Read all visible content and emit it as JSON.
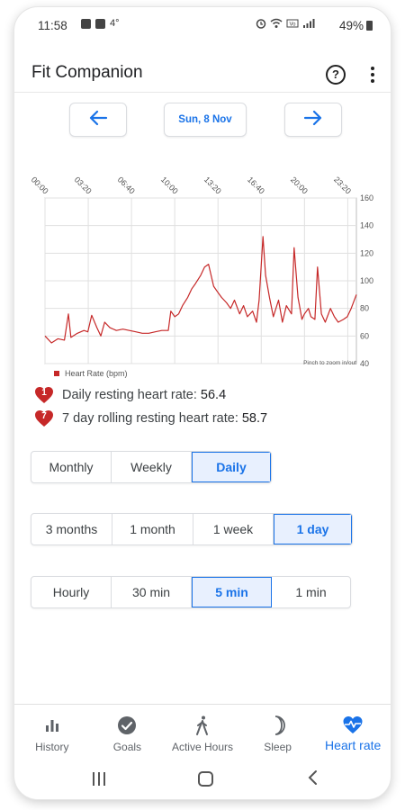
{
  "status_bar": {
    "time": "11:58",
    "notif_extra": "4°",
    "battery": "49%"
  },
  "app": {
    "title": "Fit Companion"
  },
  "date_nav": {
    "current_date": "Sun, 8 Nov"
  },
  "chart_data": {
    "type": "line",
    "x_tick_labels": [
      "00:00",
      "03:20",
      "06:40",
      "10:00",
      "13:20",
      "16:40",
      "20:00",
      "23:20"
    ],
    "x_tick_hours": [
      0,
      3.333,
      6.667,
      10,
      13.333,
      16.667,
      20,
      23.333
    ],
    "ylim": [
      40,
      160
    ],
    "y_ticks": [
      40,
      60,
      80,
      100,
      120,
      140,
      160
    ],
    "grid": true,
    "legend": "bottom-left",
    "series": [
      {
        "name": "Heart Rate (bpm)",
        "color": "#c62828",
        "x": [
          0,
          0.5,
          1,
          1.5,
          1.8,
          2,
          2.5,
          3,
          3.3,
          3.6,
          4,
          4.3,
          4.6,
          5,
          5.5,
          6,
          6.5,
          7,
          7.5,
          8,
          8.5,
          9,
          9.5,
          9.7,
          10,
          10.3,
          10.6,
          11,
          11.3,
          11.6,
          12,
          12.3,
          12.6,
          13,
          13.3,
          13.6,
          14,
          14.3,
          14.6,
          15,
          15.3,
          15.6,
          16,
          16.3,
          16.5,
          16.8,
          17,
          17.3,
          17.6,
          18,
          18.3,
          18.6,
          19,
          19.2,
          19.5,
          19.8,
          20,
          20.3,
          20.5,
          20.8,
          21,
          21.3,
          21.6,
          22,
          22.3,
          22.6,
          23,
          23.3,
          23.6,
          24
        ],
        "values": [
          60,
          55,
          58,
          57,
          76,
          59,
          62,
          64,
          63,
          75,
          66,
          60,
          70,
          66,
          64,
          65,
          64,
          63,
          62,
          62,
          63,
          64,
          64,
          78,
          74,
          76,
          82,
          88,
          94,
          98,
          104,
          110,
          112,
          96,
          92,
          88,
          84,
          80,
          86,
          76,
          82,
          74,
          78,
          70,
          86,
          132,
          104,
          88,
          74,
          86,
          70,
          82,
          76,
          124,
          88,
          72,
          76,
          80,
          74,
          72,
          110,
          76,
          70,
          80,
          74,
          70,
          72,
          74,
          80,
          90
        ]
      }
    ],
    "annotation": "Pinch to zoom in/out"
  },
  "resting": {
    "daily_badge": "1",
    "daily_label": "Daily resting heart rate:",
    "daily_value": "56.4",
    "weekly_badge": "7",
    "weekly_label": "7 day rolling resting heart rate:",
    "weekly_value": "58.7"
  },
  "period_tabs": [
    {
      "label": "Monthly"
    },
    {
      "label": "Weekly"
    },
    {
      "label": "Daily",
      "active": true
    }
  ],
  "range_tabs": [
    {
      "label": "3 months"
    },
    {
      "label": "1 month"
    },
    {
      "label": "1 week"
    },
    {
      "label": "1 day",
      "active": true
    }
  ],
  "interval_tabs": [
    {
      "label": "Hourly"
    },
    {
      "label": "30 min"
    },
    {
      "label": "5 min",
      "active": true
    },
    {
      "label": "1 min"
    }
  ],
  "bottom_nav": [
    {
      "label": "History",
      "icon": "bar-chart-icon"
    },
    {
      "label": "Goals",
      "icon": "check-circle-icon"
    },
    {
      "label": "Active Hours",
      "icon": "walking-icon"
    },
    {
      "label": "Sleep",
      "icon": "moon-icon"
    },
    {
      "label": "Heart rate",
      "icon": "heart-pulse-icon",
      "active": true
    }
  ],
  "colors": {
    "accent": "#1a73e8",
    "heart": "#c62828",
    "active_tab_bg": "#e8f0fe"
  }
}
